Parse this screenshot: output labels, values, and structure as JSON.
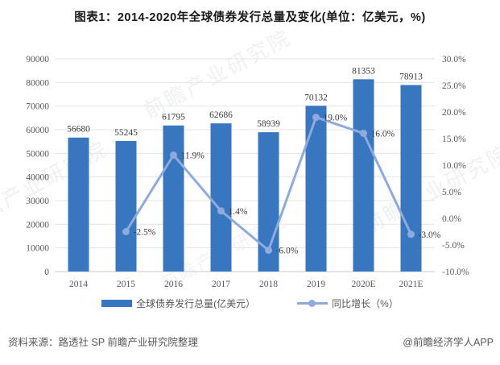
{
  "title": "图表1：2014-2020年全球债券发行总量及变化(单位：亿美元，%)",
  "watermark": "前瞻产业研究院",
  "footer": {
    "source": "资料来源：路透社 SP 前瞻产业研究院整理",
    "credit": "@前瞻经济学人APP"
  },
  "colors": {
    "bar": "#3876C0",
    "line": "#8FAADC",
    "grid": "#E4E4EA",
    "baseline": "#C9C9CF",
    "axis_text": "#595959",
    "label_text": "#3C3C3C"
  },
  "chart_data": {
    "type": "bar",
    "subtype": "bar+line combo, line on secondary axis",
    "categories": [
      "2014",
      "2015",
      "2016",
      "2017",
      "2018",
      "2019",
      "2020E",
      "2021E"
    ],
    "series": [
      {
        "name": "全球债券发行总量(亿美元）",
        "type": "bar",
        "axis": "left",
        "values": [
          56680,
          55245,
          61795,
          62686,
          58939,
          70132,
          81353,
          78913
        ]
      },
      {
        "name": "同比增长（%）",
        "type": "line",
        "axis": "right",
        "values": [
          null,
          -2.5,
          11.9,
          1.4,
          -6.0,
          19.0,
          16.0,
          -3.0
        ]
      }
    ],
    "left_axis": {
      "min": 0,
      "max": 90000,
      "step": 10000
    },
    "right_axis": {
      "min": -10,
      "max": 30,
      "step": 5,
      "suffix": "%"
    },
    "grid": true,
    "legend_position": "bottom",
    "data_labels": true
  }
}
